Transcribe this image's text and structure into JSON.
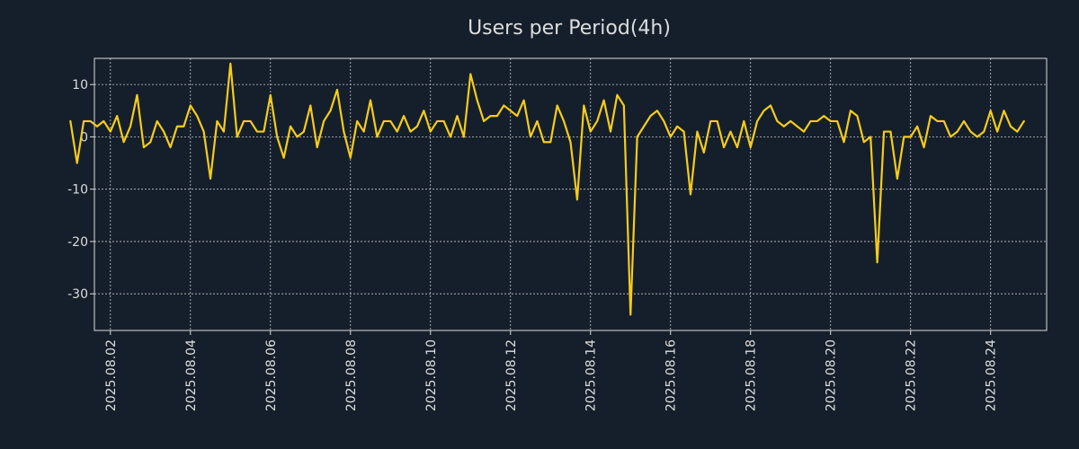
{
  "colors": {
    "background": "#151f2b",
    "axis": "#dddddd",
    "grid": "#c8c8c8",
    "text": "#dddddd",
    "line": "#f5cc1b"
  },
  "chart_data": {
    "type": "line",
    "title": "Users per Period(4h)",
    "xlabel": "",
    "ylabel": "",
    "x_start": "2025-08-01T00:00",
    "x_interval_hours": 4,
    "xlim_days": [
      0.6,
      24.4
    ],
    "ylim": [
      -37,
      15
    ],
    "grid": true,
    "y_ticks": [
      10,
      0,
      -10,
      -20,
      -30
    ],
    "y_tick_labels": [
      "10",
      "0",
      "-10",
      "-20",
      "-30"
    ],
    "x_ticks_day": [
      1,
      3,
      5,
      7,
      9,
      11,
      13,
      15,
      17,
      19,
      21,
      23
    ],
    "x_tick_labels": [
      "2025.08.02",
      "2025.08.04",
      "2025.08.06",
      "2025.08.08",
      "2025.08.10",
      "2025.08.12",
      "2025.08.14",
      "2025.08.16",
      "2025.08.18",
      "2025.08.20",
      "2025.08.22",
      "2025.08.24"
    ],
    "series": [
      {
        "name": "Users",
        "values": [
          3,
          -5,
          3,
          3,
          2,
          3,
          1,
          4,
          -1,
          2,
          8,
          -2,
          -1,
          3,
          1,
          -2,
          2,
          2,
          6,
          4,
          1,
          -8,
          3,
          1,
          14,
          0,
          3,
          3,
          1,
          1,
          8,
          0,
          -4,
          2,
          0,
          1,
          6,
          -2,
          3,
          5,
          9,
          1,
          -4,
          3,
          1,
          7,
          0,
          3,
          3,
          1,
          4,
          1,
          2,
          5,
          1,
          3,
          3,
          0,
          4,
          0,
          12,
          7,
          3,
          4,
          4,
          6,
          5,
          4,
          7,
          0,
          3,
          -1,
          -1,
          6,
          3,
          -1,
          -12,
          6,
          1,
          3,
          7,
          1,
          8,
          6,
          -34,
          0,
          2,
          4,
          5,
          3,
          0,
          2,
          1,
          -11,
          1,
          -3,
          3,
          3,
          -2,
          1,
          -2,
          3,
          -2,
          3,
          5,
          6,
          3,
          2,
          3,
          2,
          1,
          3,
          3,
          4,
          3,
          3,
          -1,
          5,
          4,
          -1,
          0,
          -24,
          1,
          1,
          -8,
          0,
          0,
          2,
          -2,
          4,
          3,
          3,
          0,
          1,
          3,
          1,
          0,
          1,
          5,
          1,
          5,
          2,
          1,
          3
        ]
      }
    ]
  }
}
